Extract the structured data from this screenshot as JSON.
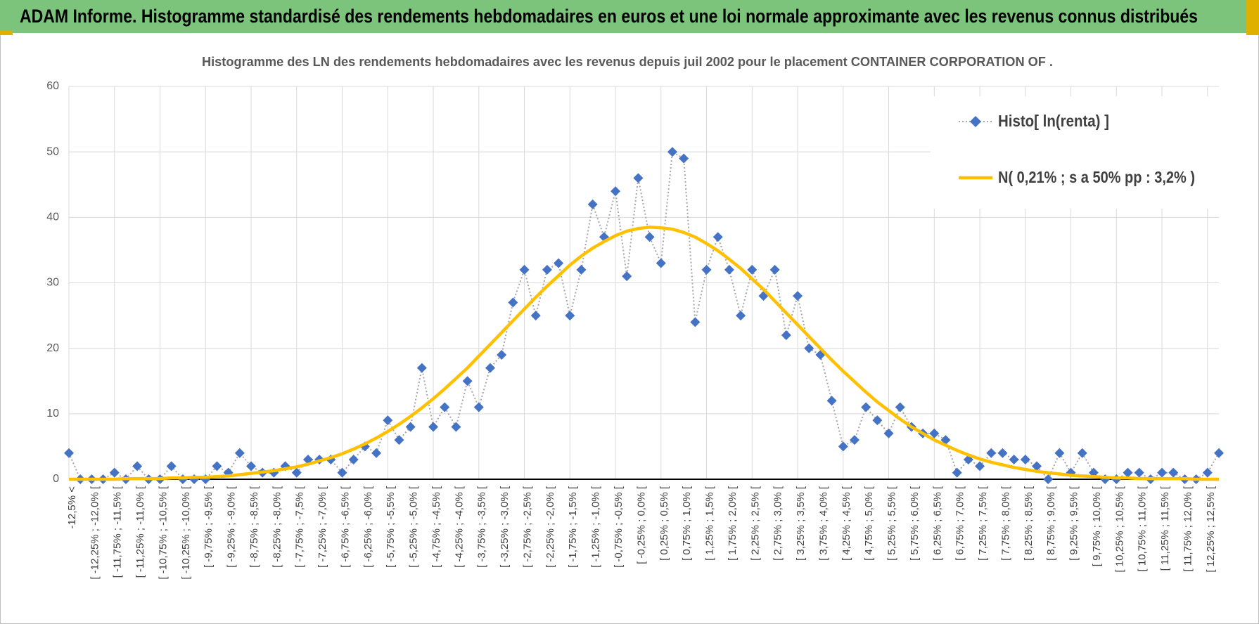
{
  "chart_data": {
    "type": "line",
    "page_title": "ADAM Informe. Histogramme standardisé des rendements hebdomadaires en euros et une loi normale approximante avec les revenus connus distribués",
    "title": "Histogramme  des LN des rendements hebdomadaires avec les revenus depuis juil 2002 pour le placement CONTAINER CORPORATION OF .",
    "categories": [
      "-12,5% <",
      null,
      "[ -12,25% ; -12,0% [",
      null,
      "[ -11,75% ; -11,5% [",
      null,
      "[ -11,25% ; -11,0% [",
      null,
      "[ -10,75% ; -10,5% [",
      null,
      "[ -10,25% ; -10,0% [",
      null,
      "[ -9,75% ; -9,5% [",
      null,
      "[ -9,25% ; -9,0% [",
      null,
      "[ -8,75% ; -8,5% [",
      null,
      "[ -8,25% ; -8,0% [",
      null,
      "[ -7,75% ; -7,5% [",
      null,
      "[ -7,25% ; -7,0% [",
      null,
      "[ -6,75% ; -6,5% [",
      null,
      "[ -6,25% ; -6,0% [",
      null,
      "[ -5,75% ; -5,5% [",
      null,
      "[ -5,25% ; -5,0% [",
      null,
      "[ -4,75% ; -4,5% [",
      null,
      "[ -4,25% ; -4,0% [",
      null,
      "[ -3,75% ; -3,5% [",
      null,
      "[ -3,25% ; -3,0% [",
      null,
      "[ -2,75% ; -2,5% [",
      null,
      "[ -2,25% ; -2,0% [",
      null,
      "[ -1,75% ; -1,5% [",
      null,
      "[ -1,25% ; -1,0% [",
      null,
      "[ -0,75% ; -0,5% [",
      null,
      "[ -0,25% ; 0,0% [",
      null,
      "[ 0,25% ; 0,5% [",
      null,
      "[ 0,75% ; 1,0% [",
      null,
      "[ 1,25% ; 1,5% [",
      null,
      "[ 1,75% ; 2,0% [",
      null,
      "[ 2,25% ; 2,5% [",
      null,
      "[ 2,75% ; 3,0% [",
      null,
      "[ 3,25% ; 3,5% [",
      null,
      "[ 3,75% ; 4,0% [",
      null,
      "[ 4,25% ; 4,5% [",
      null,
      "[ 4,75% ; 5,0% [",
      null,
      "[ 5,25% ; 5,5% [",
      null,
      "[ 5,75% ; 6,0% [",
      null,
      "[ 6,25% ; 6,5% [",
      null,
      "[ 6,75% ; 7,0% [",
      null,
      "[ 7,25% ; 7,5% [",
      null,
      "[ 7,75% ; 8,0% [",
      null,
      "[ 8,25% ; 8,5% [",
      null,
      "[ 8,75% ; 9,0% [",
      null,
      "[ 9,25% ; 9,5% [",
      null,
      "[ 9,75% ; 10,0% [",
      null,
      "[ 10,25% ; 10,5% [",
      null,
      "[ 10,75% ; 11,0% [",
      null,
      "[ 11,25% ; 11,5% [",
      null,
      "[ 11,75% ; 12,0% [",
      null,
      "[ 12,25% ; 12,5% [",
      null
    ],
    "series": [
      {
        "name": "Histo[ ln(renta) ]",
        "color": "#4472c4",
        "line_color": "#a6a6a6",
        "line_dash": "dotted",
        "marker": "diamond",
        "values": [
          4,
          0,
          0,
          0,
          1,
          0,
          2,
          0,
          0,
          2,
          0,
          0,
          0,
          2,
          1,
          4,
          2,
          1,
          1,
          2,
          1,
          3,
          3,
          3,
          1,
          3,
          5,
          4,
          9,
          6,
          8,
          17,
          8,
          11,
          8,
          15,
          11,
          17,
          19,
          27,
          32,
          25,
          32,
          33,
          25,
          32,
          42,
          37,
          44,
          31,
          46,
          37,
          33,
          50,
          49,
          24,
          32,
          37,
          32,
          25,
          32,
          28,
          32,
          22,
          28,
          20,
          19,
          12,
          5,
          6,
          11,
          9,
          7,
          11,
          8,
          7,
          7,
          6,
          1,
          3,
          2,
          4,
          4,
          3,
          3,
          2,
          0,
          4,
          1,
          4,
          1,
          0,
          0,
          1,
          1,
          0,
          1,
          1,
          0,
          0,
          1,
          4
        ]
      },
      {
        "name": "N( 0,21% ; s a 50% pp : 3,2% )",
        "color": "#ffc000",
        "line_color": "#ffc000",
        "line_dash": "solid",
        "marker": "none",
        "values": [
          0.0,
          0.0,
          0.0,
          0.0,
          0.0,
          0.1,
          0.1,
          0.1,
          0.1,
          0.2,
          0.2,
          0.3,
          0.3,
          0.4,
          0.5,
          0.7,
          0.9,
          1.1,
          1.3,
          1.6,
          1.9,
          2.3,
          2.8,
          3.3,
          3.9,
          4.6,
          5.4,
          6.3,
          7.3,
          8.4,
          9.6,
          10.9,
          12.3,
          13.8,
          15.4,
          17.0,
          18.8,
          20.6,
          22.4,
          24.2,
          26.0,
          27.8,
          29.5,
          31.1,
          32.7,
          34.1,
          35.3,
          36.3,
          37.2,
          37.9,
          38.3,
          38.5,
          38.4,
          38.2,
          37.7,
          37.0,
          36.0,
          34.9,
          33.6,
          32.2,
          30.6,
          29.0,
          27.2,
          25.4,
          23.6,
          21.8,
          20.0,
          18.2,
          16.5,
          14.9,
          13.3,
          11.8,
          10.5,
          9.2,
          8.0,
          7.0,
          6.0,
          5.2,
          4.4,
          3.7,
          3.1,
          2.6,
          2.2,
          1.8,
          1.5,
          1.2,
          1.0,
          0.8,
          0.6,
          0.5,
          0.4,
          0.3,
          0.2,
          0.2,
          0.1,
          0.1,
          0.1,
          0.1,
          0.1,
          0.0,
          0.0,
          0.0
        ]
      }
    ],
    "ylim": [
      0,
      60
    ],
    "yticks": [
      0,
      10,
      20,
      30,
      40,
      50,
      60
    ],
    "grid": true,
    "legend": "top-right"
  }
}
